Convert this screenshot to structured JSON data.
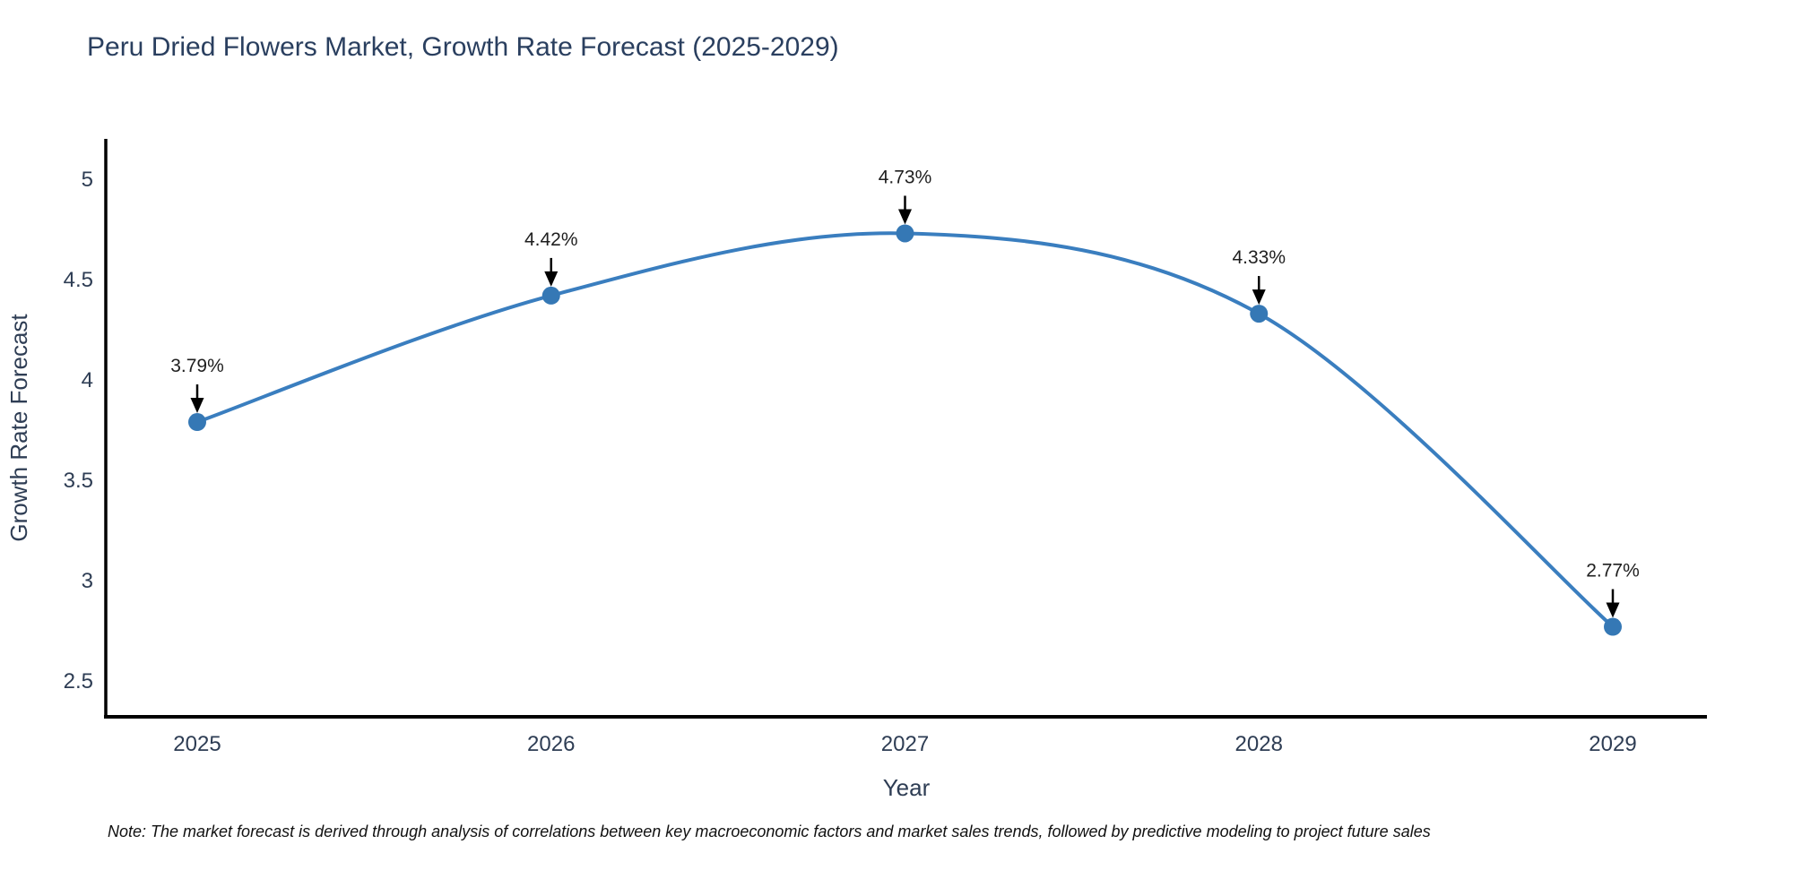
{
  "note": "Note: The market forecast is derived through analysis of correlations between key macroeconomic factors and market sales trends, followed by predictive modeling to project future sales",
  "chart_data": {
    "type": "line",
    "title": "Peru Dried Flowers Market, Growth Rate Forecast (2025-2029)",
    "categories": [
      "2025",
      "2026",
      "2027",
      "2028",
      "2029"
    ],
    "x": [
      2025,
      2026,
      2027,
      2028,
      2029
    ],
    "values": [
      3.79,
      4.42,
      4.73,
      4.33,
      2.77
    ],
    "point_labels": [
      "3.79%",
      "4.42%",
      "4.73%",
      "4.33%",
      "2.77%"
    ],
    "xlabel": "Year",
    "ylabel": "Growth Rate Forecast",
    "yticks": [
      2.5,
      3,
      3.5,
      4,
      4.5,
      5
    ],
    "ytick_labels": [
      "2.5",
      "3",
      "3.5",
      "4",
      "4.5",
      "5"
    ],
    "ylim": [
      2.32,
      5.2
    ],
    "line_shape": "spline",
    "grid": false,
    "legend_position": "none",
    "colors": {
      "line": "#3a7ebf",
      "marker": "#3578b5",
      "axis_line": "#000000",
      "tick_text": "#2e3d54",
      "axis_title_text": "#2e3d54",
      "title_text": "#2a3f5f",
      "annotation_text": "#1f1f1f",
      "annotation_arrow": "#000000",
      "background": "#ffffff"
    }
  }
}
